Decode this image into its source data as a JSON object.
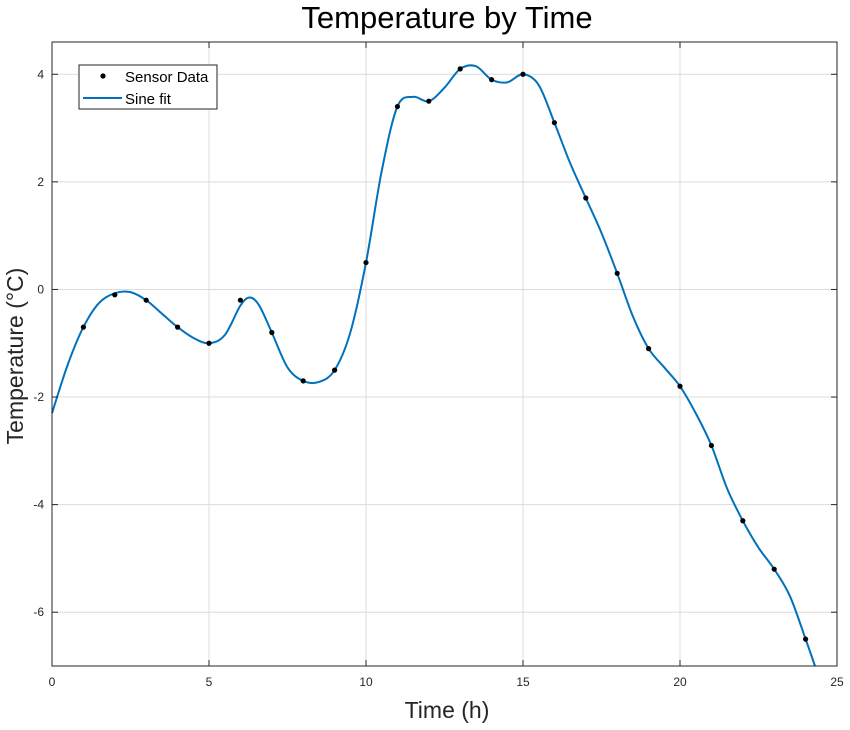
{
  "chart_data": {
    "type": "line",
    "title": "Temperature by Time",
    "xlabel": "Time (h)",
    "ylabel": "Temperature (°C)",
    "xlim": [
      0,
      25
    ],
    "ylim": [
      -7,
      4.6
    ],
    "x_ticks": [
      0,
      5,
      10,
      15,
      20,
      25
    ],
    "y_ticks": [
      -6,
      -4,
      -2,
      0,
      2,
      4
    ],
    "x_tick_labels": [
      "0",
      "5",
      "10",
      "15",
      "20",
      "25"
    ],
    "y_tick_labels": [
      "-6",
      "-4",
      "-2",
      "0",
      "2",
      "4"
    ],
    "grid": true,
    "legend_position": "top-left",
    "series": [
      {
        "name": "Sensor Data",
        "style": "markers",
        "color": "#000000",
        "x": [
          1,
          2,
          3,
          4,
          5,
          6,
          7,
          8,
          9,
          10,
          11,
          12,
          13,
          14,
          15,
          16,
          17,
          18,
          19,
          20,
          21,
          22,
          23,
          24
        ],
        "y": [
          -0.7,
          -0.1,
          -0.2,
          -0.7,
          -1.0,
          -0.2,
          -0.8,
          -1.7,
          -1.5,
          0.5,
          3.4,
          3.5,
          4.1,
          3.9,
          4.0,
          3.1,
          1.7,
          0.3,
          -1.1,
          -1.8,
          -2.9,
          -4.3,
          -5.2,
          -6.5
        ]
      },
      {
        "name": "Sine fit",
        "style": "line",
        "color": "#0072bd",
        "x": [
          0,
          0.5,
          1,
          1.5,
          2,
          2.5,
          3,
          3.5,
          4,
          4.5,
          5,
          5.5,
          6,
          6.3,
          6.6,
          7,
          7.5,
          8,
          8.5,
          9,
          9.5,
          10,
          10.5,
          11,
          11.5,
          12,
          12.5,
          13,
          13.5,
          14,
          14.5,
          15,
          15.5,
          16,
          16.5,
          17,
          17.5,
          18,
          18.5,
          19,
          19.5,
          20,
          20.5,
          21,
          21.5,
          22,
          22.5,
          23,
          23.5,
          24,
          24.3
        ],
        "y": [
          -2.3,
          -1.4,
          -0.7,
          -0.25,
          -0.07,
          -0.05,
          -0.2,
          -0.45,
          -0.7,
          -0.9,
          -1.0,
          -0.85,
          -0.3,
          -0.15,
          -0.3,
          -0.8,
          -1.45,
          -1.7,
          -1.72,
          -1.5,
          -0.8,
          0.5,
          2.2,
          3.4,
          3.58,
          3.5,
          3.75,
          4.1,
          4.15,
          3.9,
          3.85,
          4.0,
          3.8,
          3.1,
          2.35,
          1.7,
          1.05,
          0.3,
          -0.5,
          -1.1,
          -1.45,
          -1.8,
          -2.3,
          -2.9,
          -3.7,
          -4.3,
          -4.8,
          -5.2,
          -5.7,
          -6.5,
          -7.0
        ]
      }
    ]
  }
}
